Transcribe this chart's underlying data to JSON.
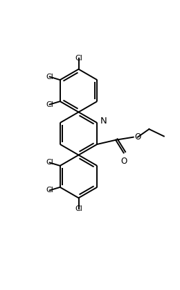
{
  "background_color": "#ffffff",
  "line_color": "#000000",
  "line_width": 1.4,
  "font_size": 8.5,
  "figsize": [
    2.6,
    4.18
  ],
  "dpi": 100,
  "xlim": [
    -0.5,
    5.5
  ],
  "ylim": [
    -5.0,
    5.0
  ]
}
